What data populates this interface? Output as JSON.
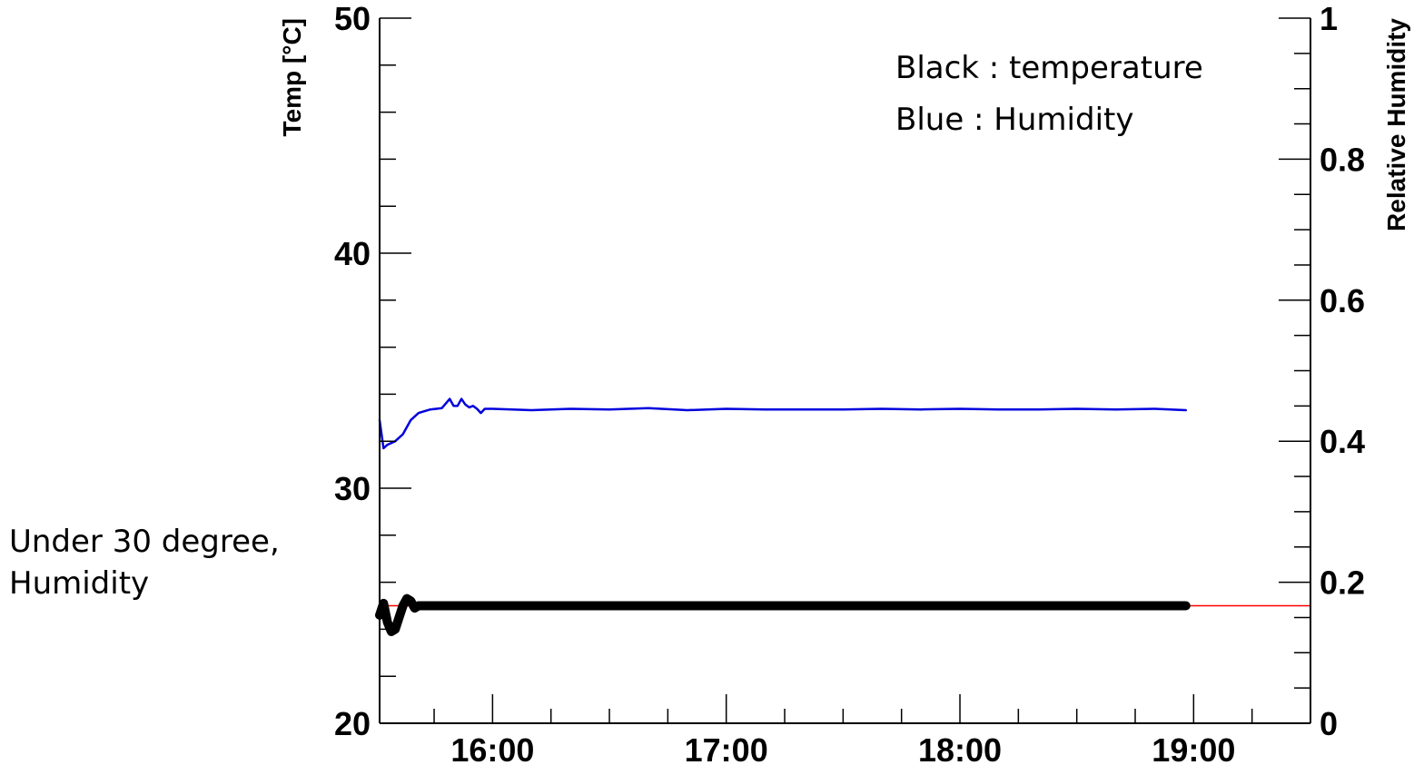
{
  "annotation": {
    "line1": "Under 30 degree,",
    "line2": "Humidity"
  },
  "chart_data": {
    "type": "line",
    "xlabel": "",
    "ylabel": "Temp [°C]",
    "y2label": "Relative Humidity",
    "x_range": [
      "15:31",
      "19:30"
    ],
    "xticks": [
      "16:00",
      "17:00",
      "18:00",
      "19:00"
    ],
    "ylim": [
      20,
      50
    ],
    "yticks": [
      20,
      30,
      40,
      50
    ],
    "y2lim": [
      0,
      1
    ],
    "y2ticks": [
      "0",
      "0.2",
      "0.4",
      "0.6",
      "0.8",
      "1"
    ],
    "legend": [
      "Black : temperature",
      "Blue : Humidity"
    ],
    "legend_position": "top-right",
    "reference_line": {
      "y": 25,
      "color": "#ff0000"
    },
    "series": [
      {
        "name": "temperature",
        "axis": "left",
        "color": "#000000",
        "x": [
          "15:31",
          "15:32",
          "15:33",
          "15:34",
          "15:35",
          "15:36",
          "15:37",
          "15:38",
          "15:39",
          "15:40",
          "15:41",
          "15:42",
          "15:44",
          "15:46",
          "15:50",
          "16:00",
          "16:30",
          "17:00",
          "17:30",
          "18:00",
          "18:30",
          "18:58"
        ],
        "y": [
          24.6,
          25.1,
          24.3,
          23.9,
          24.0,
          24.5,
          25.0,
          25.3,
          25.2,
          24.9,
          25.0,
          25.0,
          25.0,
          25.0,
          25.0,
          25.0,
          25.0,
          25.0,
          25.0,
          25.0,
          25.0,
          25.0
        ]
      },
      {
        "name": "humidity",
        "axis": "right",
        "color": "#0000dd",
        "x": [
          "15:31",
          "15:32",
          "15:33",
          "15:35",
          "15:37",
          "15:39",
          "15:41",
          "15:44",
          "15:47",
          "15:49",
          "15:50",
          "15:51",
          "15:52",
          "15:53",
          "15:54",
          "15:55",
          "15:56",
          "15:57",
          "15:58",
          "16:00",
          "16:10",
          "16:20",
          "16:30",
          "16:40",
          "16:50",
          "17:00",
          "17:10",
          "17:20",
          "17:30",
          "17:40",
          "17:50",
          "18:00",
          "18:10",
          "18:20",
          "18:30",
          "18:40",
          "18:50",
          "18:58"
        ],
        "y": [
          0.43,
          0.39,
          0.395,
          0.4,
          0.41,
          0.43,
          0.44,
          0.445,
          0.447,
          0.46,
          0.45,
          0.45,
          0.46,
          0.452,
          0.448,
          0.45,
          0.446,
          0.44,
          0.446,
          0.446,
          0.444,
          0.446,
          0.445,
          0.447,
          0.444,
          0.446,
          0.445,
          0.445,
          0.445,
          0.446,
          0.445,
          0.446,
          0.445,
          0.445,
          0.446,
          0.445,
          0.446,
          0.444
        ]
      }
    ]
  }
}
